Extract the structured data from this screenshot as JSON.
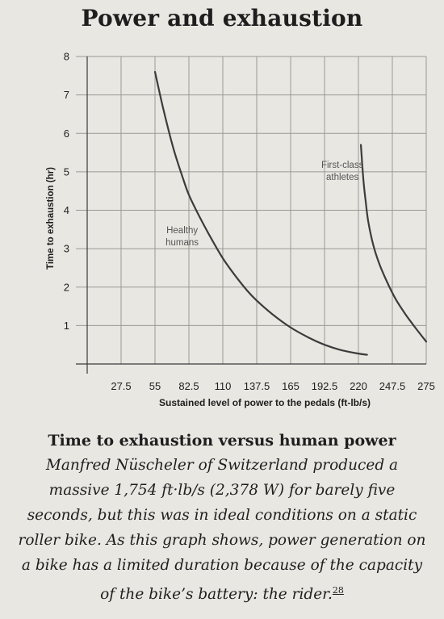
{
  "chart_data": {
    "type": "line",
    "title": "Power and exhaustion",
    "xlabel": "Sustained level of power to the pedals (ft-lb/s)",
    "ylabel": "Time to exhaustion (hr)",
    "x_ticks": [
      27.5,
      55,
      82.5,
      110,
      137.5,
      165,
      192.5,
      220,
      247.5,
      275
    ],
    "x_tick_labels": [
      "27.5",
      "55",
      "82.5",
      "110",
      "137.5",
      "165",
      "192.5",
      "220",
      "247.5",
      "275"
    ],
    "y_ticks": [
      1,
      2,
      3,
      4,
      5,
      6,
      7,
      8
    ],
    "y_tick_labels": [
      "1",
      "2",
      "3",
      "4",
      "5",
      "6",
      "7",
      "8"
    ],
    "xlim": [
      0,
      275
    ],
    "ylim": [
      0,
      8
    ],
    "grid": true,
    "series": [
      {
        "name": "Healthy\nhumans",
        "name_lines": [
          "Healthy",
          "humans"
        ],
        "x": [
          55,
          62,
          70,
          78,
          82.5,
          90,
          100,
          110,
          120,
          130,
          137.5,
          150,
          165,
          180,
          192.5,
          205,
          220,
          227
        ],
        "y": [
          7.6,
          6.6,
          5.6,
          4.8,
          4.4,
          3.9,
          3.3,
          2.75,
          2.3,
          1.9,
          1.65,
          1.3,
          0.95,
          0.68,
          0.5,
          0.37,
          0.27,
          0.24
        ]
      },
      {
        "name": "First-class\nathletes",
        "name_lines": [
          "First-class",
          "athletes"
        ],
        "x": [
          222,
          224,
          226,
          228,
          232,
          237,
          243,
          250,
          258,
          266,
          275
        ],
        "y": [
          5.7,
          4.8,
          4.2,
          3.7,
          3.1,
          2.6,
          2.15,
          1.7,
          1.3,
          0.95,
          0.58
        ]
      }
    ],
    "series_labels": [
      {
        "text_lines": [
          "Healthy",
          "humans"
        ],
        "x": 77,
        "y": 3.4
      },
      {
        "text_lines": [
          "First-class",
          "athletes"
        ],
        "x": 207,
        "y": 5.1
      }
    ],
    "caption": {
      "heading": "Time to exhaustion versus human power",
      "body": "Manfred Nüscheler of Switzerland produced a massive 1,754 ft·lb/s (2,378 W) for barely five seconds, but this was in ideal conditions on a static roller bike. As this graph shows, power generation on a bike has a limited duration because of the capacity of the bike’s battery: the rider.",
      "footnote": "28"
    }
  },
  "colors": {
    "background": "#e9e7e2",
    "grid": "#9a9994",
    "axis": "#3a3a3a",
    "curve": "#3c3c3c",
    "text": "#1e1e1e",
    "label_text": "#555555"
  }
}
